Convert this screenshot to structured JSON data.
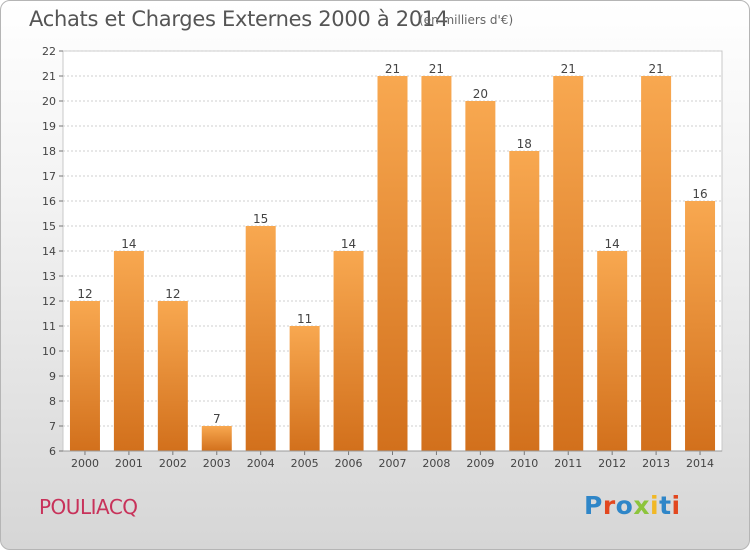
{
  "header": {
    "title": "Achats et Charges Externes 2000 à 2014",
    "subtitle": "(en milliers d'€)"
  },
  "footer": {
    "place": "POULIACQ",
    "logo": "Proxiti"
  },
  "colors": {
    "bar_light": "#f8a850",
    "bar_dark": "#d2701c",
    "place_text": "#c8325a",
    "logo_letters": [
      "#2f86c8",
      "#e2471f",
      "#2f86c8",
      "#8cc43c",
      "#f1b826",
      "#2f86c8",
      "#e2471f"
    ]
  },
  "chart_data": {
    "type": "bar",
    "title": "Achats et Charges Externes 2000 à 2014",
    "subtitle": "(en milliers d'€)",
    "categories": [
      "2000",
      "2001",
      "2002",
      "2003",
      "2004",
      "2005",
      "2006",
      "2007",
      "2008",
      "2009",
      "2010",
      "2011",
      "2012",
      "2013",
      "2014"
    ],
    "values": [
      12,
      14,
      12,
      7,
      15,
      11,
      14,
      21,
      21,
      20,
      18,
      21,
      14,
      21,
      16
    ],
    "data_labels": [
      "12",
      "14",
      "12",
      "7",
      "15",
      "11",
      "14",
      "21",
      "21",
      "20",
      "18",
      "21",
      "14",
      "21",
      "16"
    ],
    "ylim": [
      6,
      22
    ],
    "yticks": [
      "6",
      "7",
      "8",
      "9",
      "10",
      "11",
      "12",
      "13",
      "14",
      "15",
      "16",
      "17",
      "18",
      "19",
      "20",
      "21",
      "22"
    ],
    "grid": true,
    "xlabel": "",
    "ylabel": ""
  }
}
